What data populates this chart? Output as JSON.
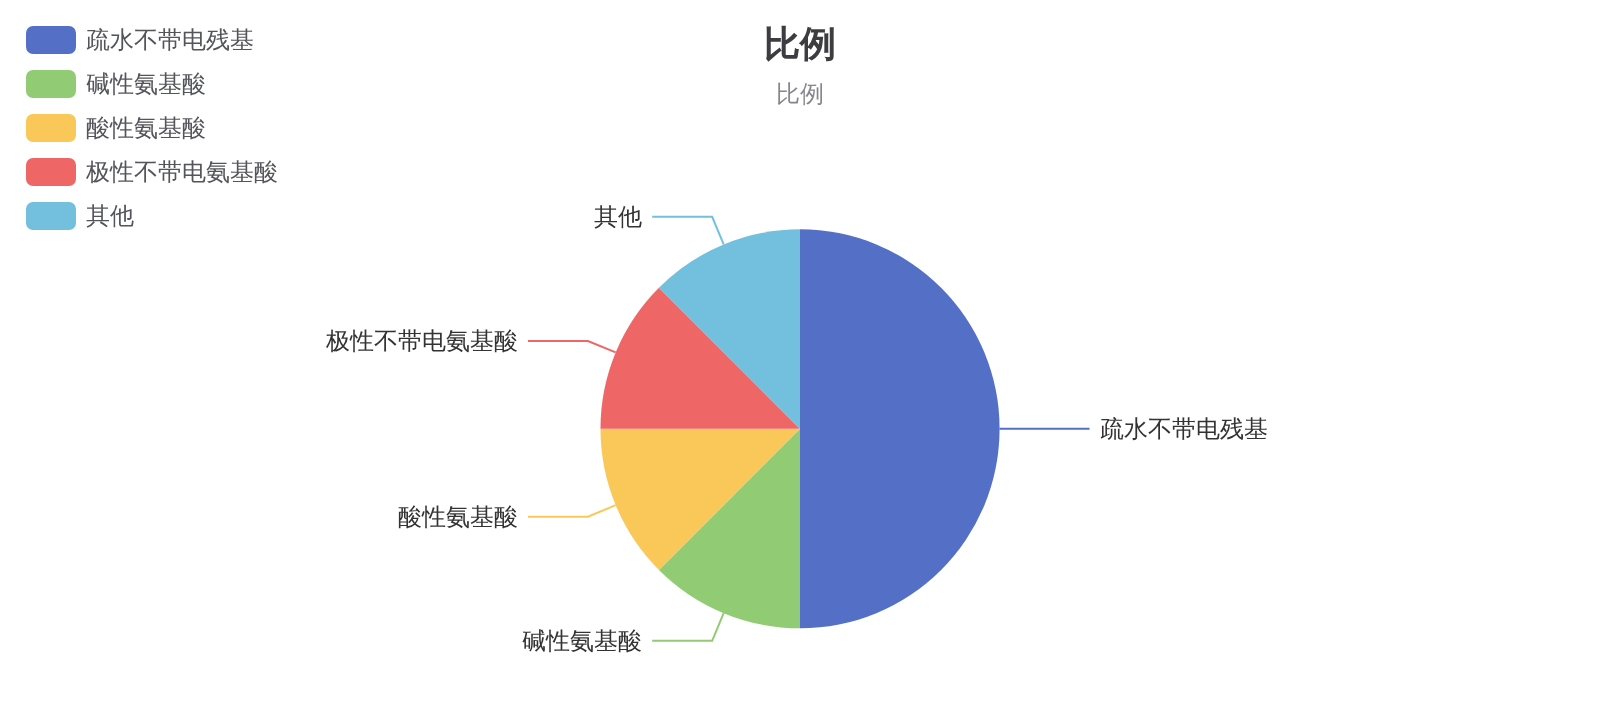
{
  "chart_data": {
    "type": "pie",
    "title": "比例",
    "subtitle": "比例",
    "categories": [
      "疏水不带电残基",
      "碱性氨基酸",
      "酸性氨基酸",
      "极性不带电氨基酸",
      "其他"
    ],
    "values": [
      50,
      12.5,
      12.5,
      12.5,
      12.5
    ],
    "colors": [
      "#5470c6",
      "#91cc75",
      "#fac858",
      "#ee6666",
      "#73c0de"
    ],
    "legend": "top left"
  }
}
